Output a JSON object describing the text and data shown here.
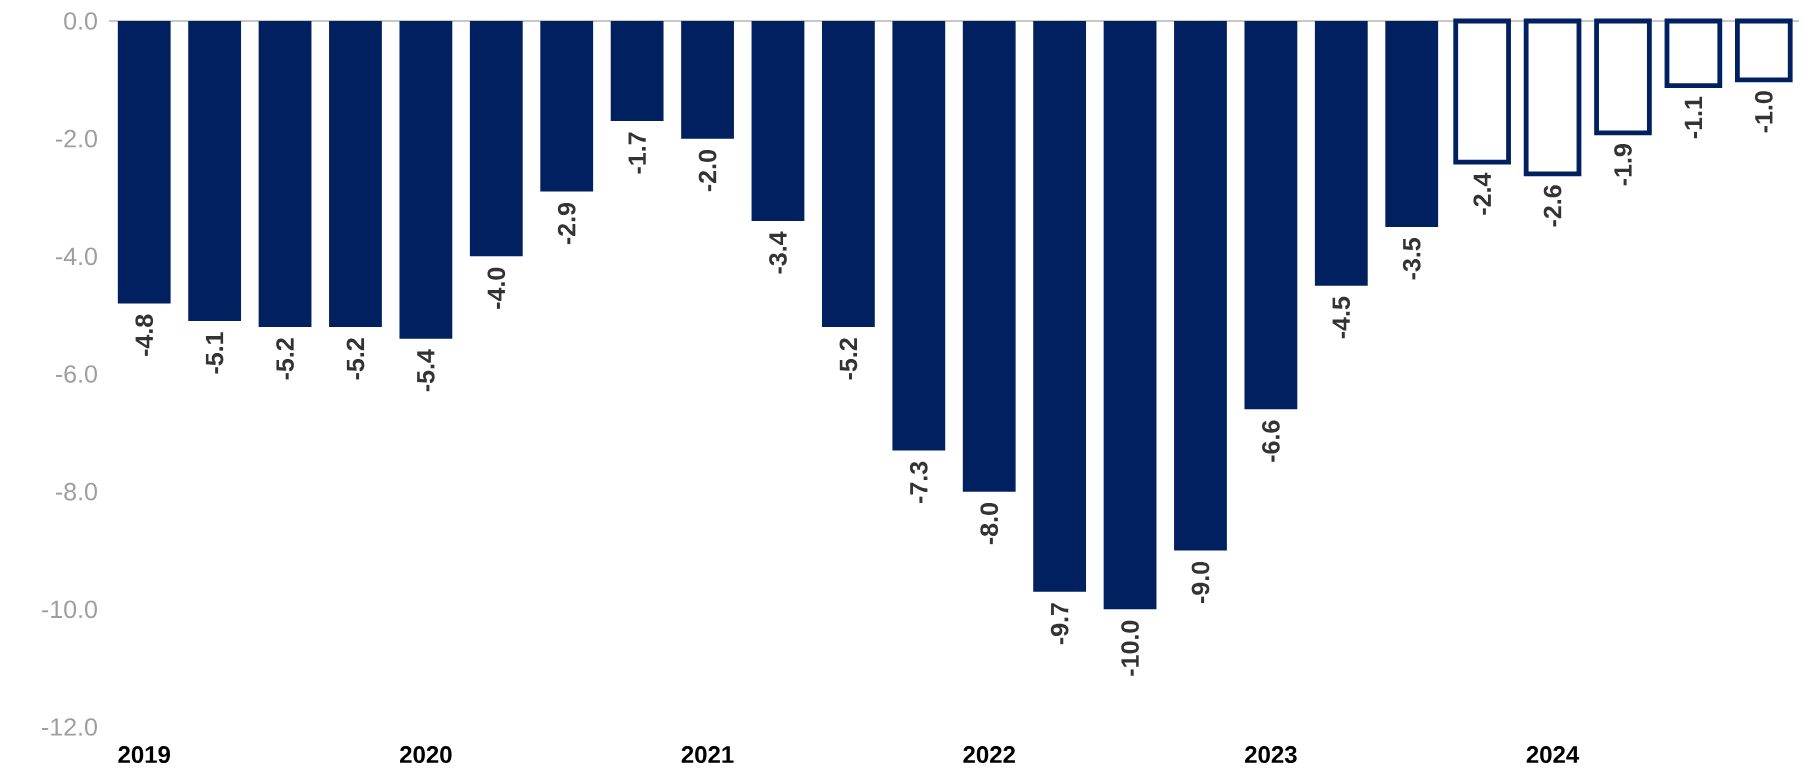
{
  "chart_data": {
    "type": "bar",
    "categories": [
      "2019",
      null,
      null,
      null,
      "2020",
      null,
      null,
      null,
      "2021",
      null,
      null,
      null,
      "2022",
      null,
      null,
      null,
      "2023",
      null,
      null,
      null,
      "2024",
      null,
      null,
      null
    ],
    "series": [
      {
        "color": "#002060",
        "values": [
          -4.8,
          -5.1,
          -5.2,
          -5.2,
          -5.4,
          -4.0,
          -2.9,
          -1.7,
          -2.0,
          -3.4,
          -5.2,
          -7.3,
          -8.0,
          -9.7,
          -10.0,
          -9.0,
          -6.6,
          -4.5,
          -3.5,
          null,
          null,
          null,
          null,
          null
        ],
        "value_labels": [
          "-4.8",
          "-5.1",
          "-5.2",
          "-5.2",
          "-5.4",
          "-4.0",
          "-2.9",
          "-1.7",
          "-2.0",
          "-3.4",
          "-5.2",
          "-7.3",
          "-8.0",
          "-9.7",
          "-10.0",
          "-9.0",
          "-6.6",
          "-4.5",
          "-3.5",
          null,
          null,
          null,
          null,
          null
        ]
      },
      {
        "color": "#ffffff",
        "values": [
          null,
          null,
          null,
          null,
          null,
          null,
          null,
          null,
          null,
          null,
          null,
          null,
          null,
          null,
          null,
          null,
          null,
          null,
          null,
          -2.4,
          -2.6,
          -1.9,
          -1.1,
          -1.0
        ],
        "value_labels": [
          null,
          null,
          null,
          null,
          null,
          null,
          null,
          null,
          null,
          null,
          null,
          null,
          null,
          null,
          null,
          null,
          null,
          null,
          null,
          "-2.4",
          "-2.6",
          "-1.9",
          "-1.1",
          "-1.0"
        ]
      }
    ],
    "ylim": [
      -12,
      0
    ],
    "yticks": [
      {
        "value": 0,
        "label": "0.0"
      },
      {
        "value": -2,
        "label": "-2.0"
      },
      {
        "value": -4,
        "label": "-4.0"
      },
      {
        "value": -6,
        "label": "-6.0"
      },
      {
        "value": -8,
        "label": "-8.0"
      },
      {
        "value": -10,
        "label": "-10.0"
      },
      {
        "value": -12,
        "label": "-12.0"
      }
    ],
    "grid": false
  }
}
